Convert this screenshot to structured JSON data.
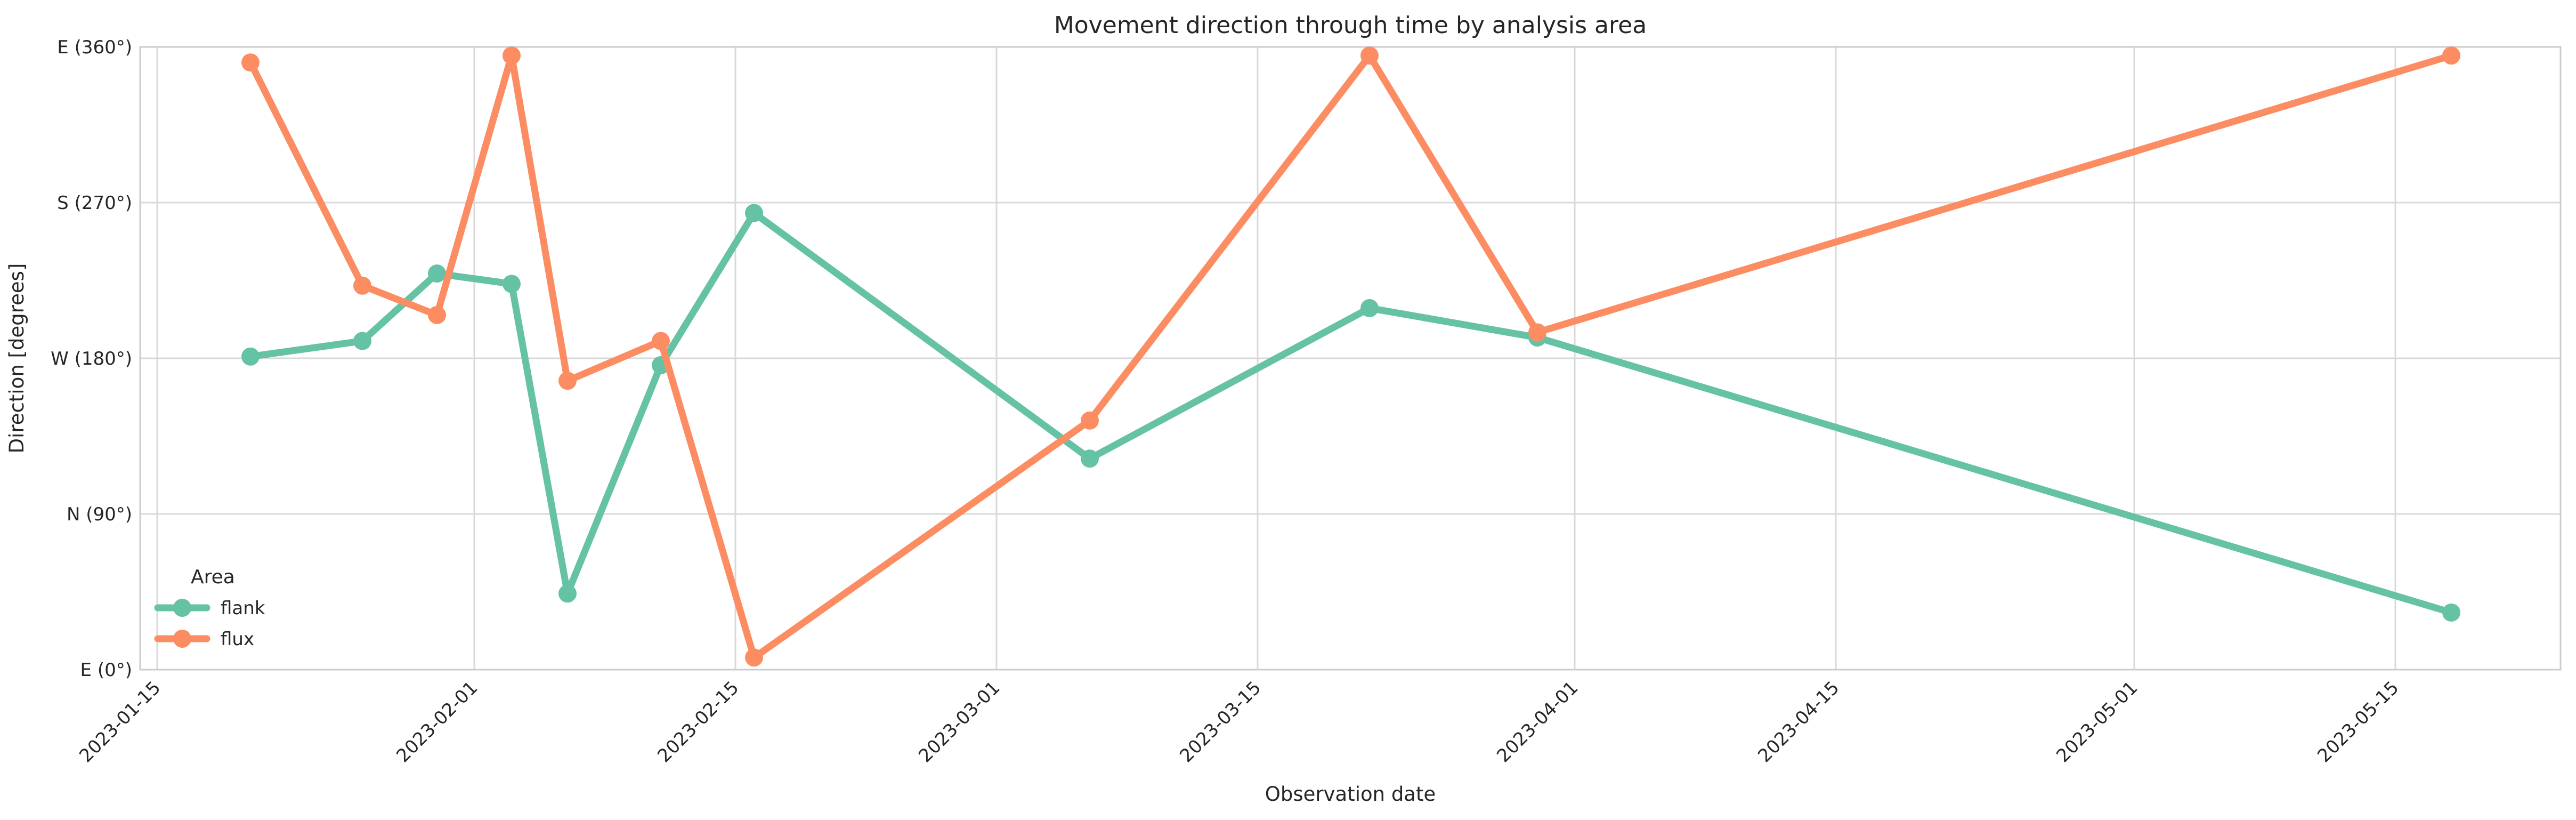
{
  "chart_data": {
    "type": "line",
    "title": "Movement direction through time by analysis area",
    "xlabel": "Observation date",
    "ylabel": "Direction [degrees]",
    "grid": true,
    "background": "#ffffff",
    "grid_color": "#d9d9d9",
    "spine_color": "#cccccc",
    "text_color": "#262626",
    "ylim": [
      0,
      360
    ],
    "y_ticks": [
      {
        "value": 0,
        "label": "E (0°)"
      },
      {
        "value": 90,
        "label": "N (90°)"
      },
      {
        "value": 180,
        "label": "W (180°)"
      },
      {
        "value": 270,
        "label": "S (270°)"
      },
      {
        "value": 360,
        "label": "E (360°)"
      }
    ],
    "x_ticks": [
      {
        "day": 0,
        "label": "2023-01-15"
      },
      {
        "day": 17,
        "label": "2023-02-01"
      },
      {
        "day": 31,
        "label": "2023-02-15"
      },
      {
        "day": 45,
        "label": "2023-03-01"
      },
      {
        "day": 59,
        "label": "2023-03-15"
      },
      {
        "day": 76,
        "label": "2023-04-01"
      },
      {
        "day": 90,
        "label": "2023-04-15"
      },
      {
        "day": 106,
        "label": "2023-05-01"
      },
      {
        "day": 120,
        "label": "2023-05-15"
      }
    ],
    "x_dates": [
      "2023-01-20",
      "2023-01-26",
      "2023-01-30",
      "2023-02-03",
      "2023-02-06",
      "2023-02-11",
      "2023-02-16",
      "2023-03-06",
      "2023-03-21",
      "2023-03-30",
      "2023-05-18"
    ],
    "x_days": [
      5,
      11,
      15,
      19,
      22,
      27,
      32,
      50,
      65,
      74,
      123
    ],
    "series": [
      {
        "name": "flank",
        "color": "#66c2a5",
        "values": [
          181,
          190,
          229,
          223,
          44,
          176,
          264,
          122,
          209,
          192,
          33
        ]
      },
      {
        "name": "flux",
        "color": "#fc8d62",
        "values": [
          351,
          222,
          205,
          355,
          167,
          190,
          7,
          144,
          355,
          195,
          355
        ]
      }
    ],
    "legend": {
      "title": "Area",
      "position": "lower-left",
      "entries": [
        {
          "label": "flank",
          "color": "#66c2a5"
        },
        {
          "label": "flux",
          "color": "#fc8d62"
        }
      ]
    }
  }
}
